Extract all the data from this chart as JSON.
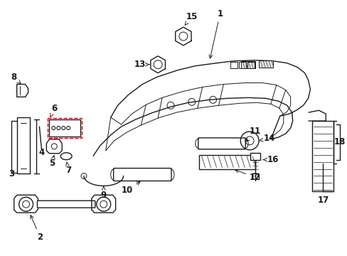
{
  "background_color": "#ffffff",
  "line_color": "#1a1a1a",
  "red_line_color": "#cc0000",
  "figure_width": 4.89,
  "figure_height": 3.6,
  "dpi": 100,
  "font_size": 8.5,
  "font_weight": "bold"
}
